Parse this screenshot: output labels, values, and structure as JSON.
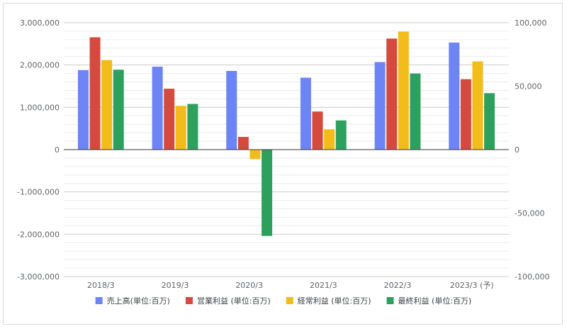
{
  "chart_data": {
    "type": "bar",
    "title": "",
    "xlabel": "",
    "ylabel": "",
    "categories": [
      "2018/3",
      "2019/3",
      "2020/3",
      "2021/3",
      "2022/3",
      "2023/3 (予)"
    ],
    "left_axis": {
      "ylim": [
        -3000000,
        3000000
      ],
      "tick_labels": [
        "3,000,000",
        "2,000,000",
        "1,000,000",
        "0",
        "-1,000,000",
        "-2,000,000",
        "-3,000,000"
      ]
    },
    "right_axis": {
      "ylim": [
        -100000,
        100000
      ],
      "tick_labels": [
        "100,000",
        "50,000",
        "0",
        "-50,000",
        "-100,000"
      ]
    },
    "series": [
      {
        "name": "売上高(単位:百万)",
        "color": "#6d84f5",
        "axis": "left",
        "values": [
          1880000,
          1960000,
          1860000,
          1700000,
          2070000,
          2530000
        ]
      },
      {
        "name": "営業利益 (単位:百万)",
        "color": "#d44a3f",
        "axis": "right",
        "values": [
          88500,
          48000,
          10000,
          30000,
          87500,
          55500
        ]
      },
      {
        "name": "経常利益 (単位:百万)",
        "color": "#f2bc1b",
        "axis": "right",
        "values": [
          70500,
          34500,
          -7500,
          16000,
          93000,
          69500
        ]
      },
      {
        "name": "最終利益 (単位:百万)",
        "color": "#2ea05e",
        "axis": "right",
        "values": [
          63000,
          36000,
          -68000,
          23000,
          60000,
          44500
        ]
      }
    ],
    "grid": true,
    "legend_position": "bottom"
  }
}
